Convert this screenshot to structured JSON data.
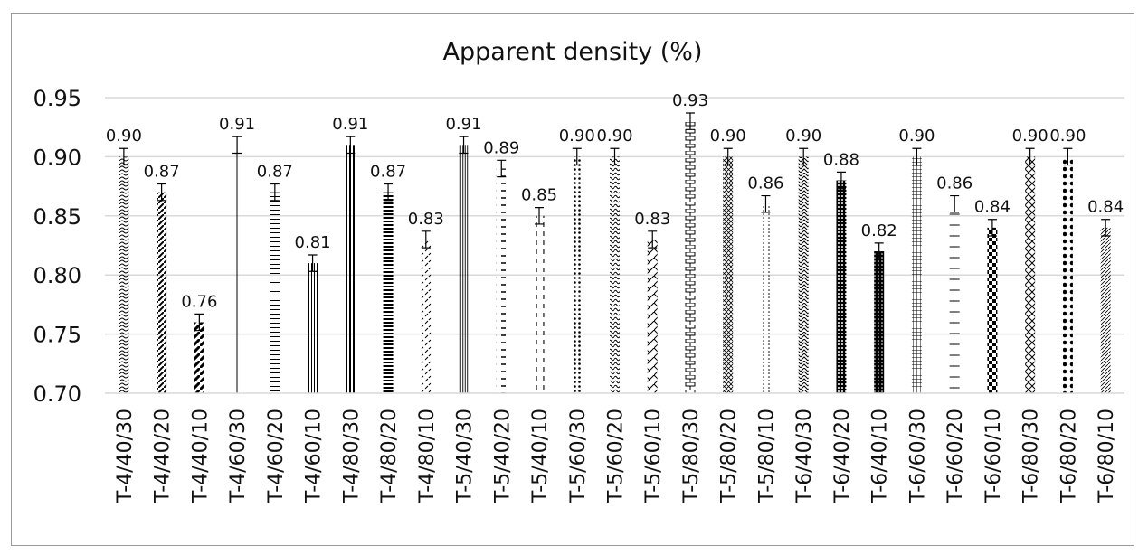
{
  "chart_data": {
    "type": "bar",
    "title": "Apparent density (%)",
    "xlabel": "",
    "ylabel": "",
    "ylim": [
      0.7,
      0.95
    ],
    "yticks": [
      "0.70",
      "0.75",
      "0.80",
      "0.85",
      "0.90",
      "0.95"
    ],
    "grid": true,
    "legend": "none",
    "error_bar": 0.007,
    "categories": [
      "T-4/40/30",
      "T-4/40/20",
      "T-4/40/10",
      "T-4/60/30",
      "T-4/60/20",
      "T-4/60/10",
      "T-4/80/30",
      "T-4/80/20",
      "T-4/80/10",
      "T-5/40/30",
      "T-5/40/20",
      "T-5/40/10",
      "T-5/60/30",
      "T-5/60/20",
      "T-5/60/10",
      "T-5/80/30",
      "T-5/80/20",
      "T-5/80/10",
      "T-6/40/30",
      "T-6/40/20",
      "T-6/40/10",
      "T-6/60/30",
      "T-6/60/20",
      "T-6/60/10",
      "T-6/80/30",
      "T-6/80/20",
      "T-6/80/10"
    ],
    "values": [
      0.9,
      0.87,
      0.76,
      0.91,
      0.87,
      0.81,
      0.91,
      0.87,
      0.83,
      0.91,
      0.89,
      0.85,
      0.9,
      0.9,
      0.83,
      0.93,
      0.9,
      0.86,
      0.9,
      0.88,
      0.82,
      0.9,
      0.86,
      0.84,
      0.9,
      0.9,
      0.84
    ],
    "data_labels": [
      "0.90",
      "0.87",
      "0.76",
      "0.91",
      "0.87",
      "0.81",
      "0.91",
      "0.87",
      "0.83",
      "0.91",
      "0.89",
      "0.85",
      "0.90",
      "0.90",
      "0.83",
      "0.93",
      "0.90",
      "0.86",
      "0.90",
      "0.88",
      "0.82",
      "0.90",
      "0.86",
      "0.84",
      "0.90",
      "0.90",
      "0.84"
    ],
    "fill_patterns": [
      "wave",
      "diag-wide",
      "diag-bold",
      "vertical-sparse",
      "horizontal",
      "vertical-dense",
      "vertical-bold",
      "horizontal-bold",
      "diag-dash",
      "vertical-fine",
      "dash-horizontal",
      "dash-vertical",
      "dots",
      "wave-dense",
      "zigzag-diag",
      "brick",
      "diag-cross",
      "dotted-vertical",
      "zigzag",
      "grid-dense",
      "dots-dense",
      "grid-fine",
      "horizontal-sparse",
      "checker",
      "diamond",
      "dots-large",
      "diag-fine"
    ],
    "bar_color": "#000000",
    "grid_color": "#d9d9d9"
  }
}
